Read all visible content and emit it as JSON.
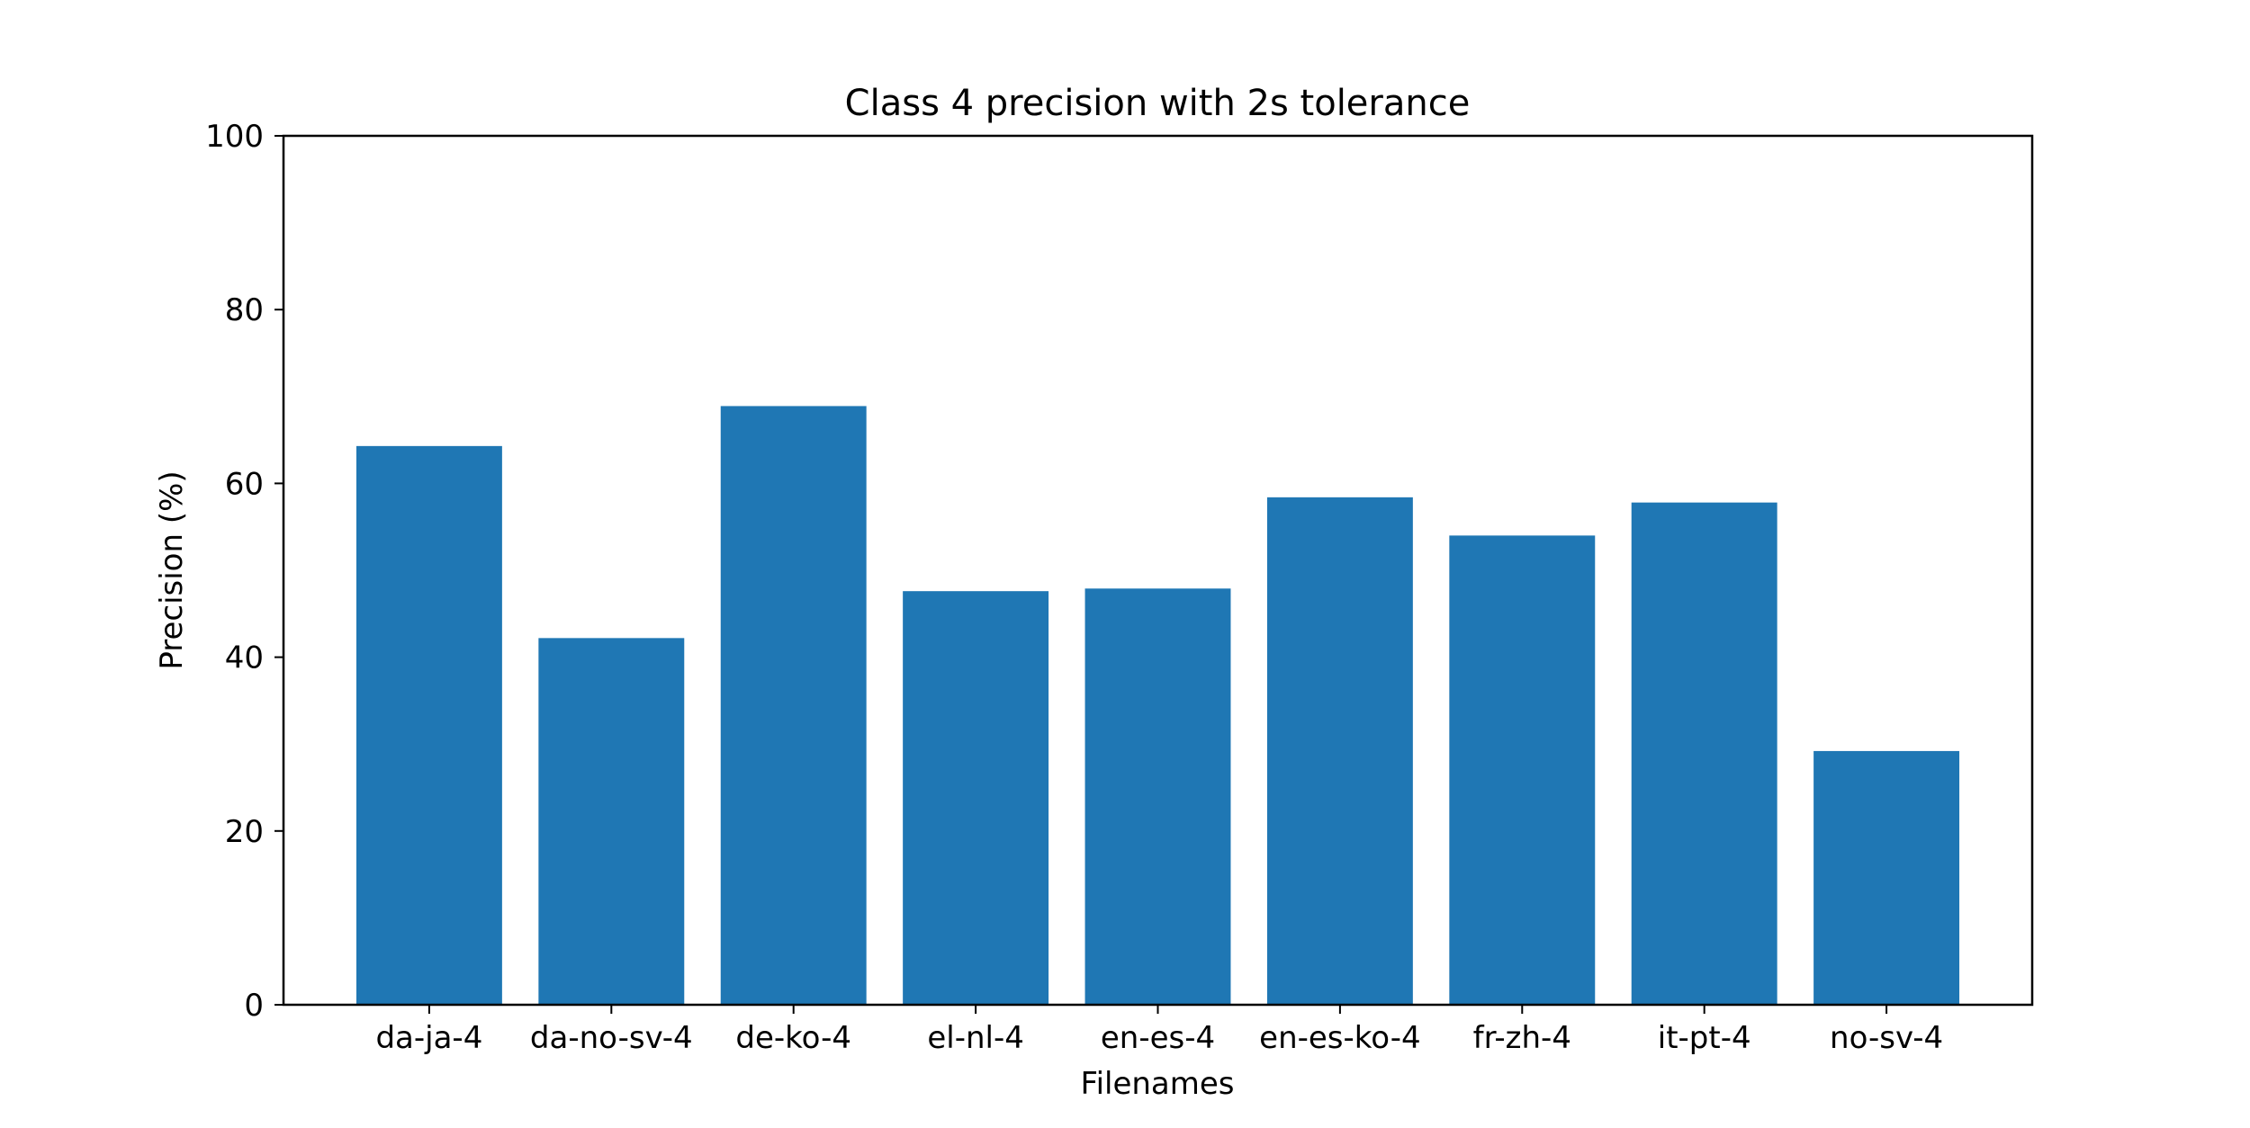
{
  "chart_data": {
    "type": "bar",
    "title": "Class 4 precision with 2s tolerance",
    "xlabel": "Filenames",
    "ylabel": "Precision (%)",
    "ylim": [
      0,
      100
    ],
    "yticks": [
      0,
      20,
      40,
      60,
      80,
      100
    ],
    "categories": [
      "da-ja-4",
      "da-no-sv-4",
      "de-ko-4",
      "el-nl-4",
      "en-es-4",
      "en-es-ko-4",
      "fr-zh-4",
      "it-pt-4",
      "no-sv-4"
    ],
    "values": [
      64.3,
      42.2,
      68.9,
      47.6,
      47.9,
      58.4,
      54.0,
      57.8,
      29.2
    ],
    "bar_color": "#1f77b4",
    "grid": false,
    "legend": "none"
  }
}
